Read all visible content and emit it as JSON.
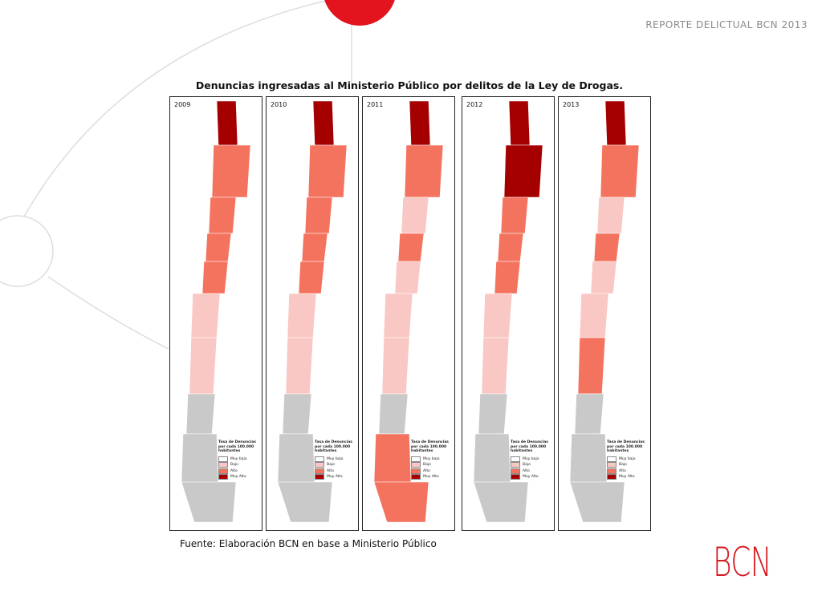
{
  "header": "REPORTE DELICTUAL BCN 2013",
  "title": "Denuncias ingresadas al Ministerio Público por delitos de la Ley de Drogas.",
  "panels": [
    {
      "year": "2009"
    },
    {
      "year": "2010"
    },
    {
      "year": "2011"
    },
    {
      "year": "2012"
    },
    {
      "year": "2013"
    }
  ],
  "legend": {
    "title": "Tasa de Denuncias por cada 100.000 habitantes",
    "items": [
      "Muy bajo",
      "Bajo",
      "Alto",
      "Muy Alto"
    ]
  },
  "source": "Fuente: Elaboración BCN en base a Ministerio Público",
  "logo": "BCN"
}
